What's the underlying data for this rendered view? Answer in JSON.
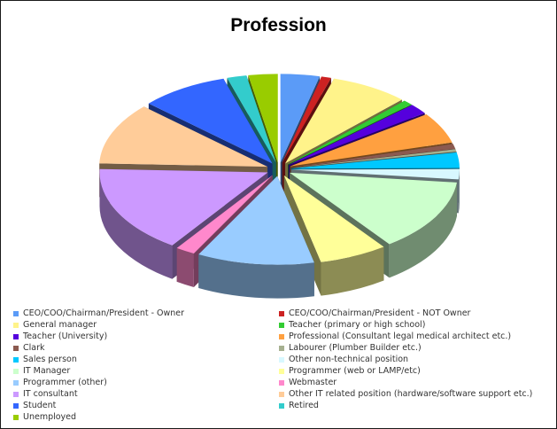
{
  "chart_data": {
    "type": "pie",
    "title": "Profession",
    "style": "exploded-3d",
    "categories": [
      "CEO/COO/Chairman/President - Owner",
      "CEO/COO/Chairman/President - NOT Owner",
      "General manager",
      "Teacher (primary or  high school)",
      "Teacher (University)",
      "Professional (Consultant legal medical architect etc.)",
      "Clark",
      "Labourer (Plumber Builder etc.)",
      "Sales person",
      "Other non-technical position",
      "IT Manager",
      "Programmer (web or LAMP/etc)",
      "Programmer (other)",
      "Webmaster",
      "IT consultant",
      "Other IT related position (hardware/software support etc.)",
      "Student",
      "Retired",
      "Unemployed"
    ],
    "values": [
      4,
      1,
      8,
      1,
      2,
      6,
      1,
      0.5,
      3,
      2,
      14,
      7,
      12,
      2,
      17,
      12,
      9,
      2,
      3
    ],
    "colors": [
      "#5b9bf7",
      "#cc2222",
      "#fff38a",
      "#33cc33",
      "#5500dd",
      "#ffa040",
      "#8b5a50",
      "#a6b090",
      "#00c8ff",
      "#d8f8ff",
      "#ccffcc",
      "#ffff99",
      "#99ccff",
      "#ff88cc",
      "#cc99ff",
      "#ffcc99",
      "#3366ff",
      "#33cccc",
      "#99cc00"
    ],
    "legend_position": "bottom"
  }
}
